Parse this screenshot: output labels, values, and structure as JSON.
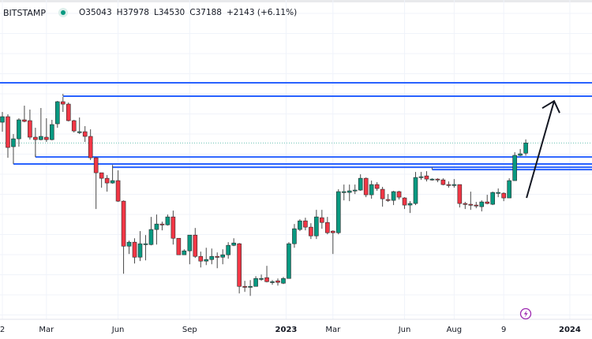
{
  "header": {
    "symbol": "· BITSTAMP",
    "open": "O35043",
    "high": "H37978",
    "low": "L34530",
    "close": "C37188",
    "change": "+2143 (+6.11%)"
  },
  "colors": {
    "up": "#089981",
    "down": "#F23645",
    "level_line": "#2962FF",
    "price_line": "#089981",
    "grid": "#f0f3fa",
    "arrow": "#131722",
    "lightning": "#9c27b0"
  },
  "chart_data": {
    "type": "candlestick",
    "interval": "weekly",
    "y_scale": "log",
    "ylim": [
      12600,
      60000
    ],
    "x_labels": [
      {
        "label": "2",
        "index": 0,
        "bold": false
      },
      {
        "label": "Mar",
        "index": 8,
        "bold": false
      },
      {
        "label": "Jun",
        "index": 21,
        "bold": false
      },
      {
        "label": "Sep",
        "index": 34,
        "bold": false
      },
      {
        "label": "2023",
        "index": 51.5,
        "bold": true
      },
      {
        "label": "Mar",
        "index": 60,
        "bold": false
      },
      {
        "label": "Jun",
        "index": 73,
        "bold": false
      },
      {
        "label": "Aug",
        "index": 82,
        "bold": false
      },
      {
        "label": "9",
        "index": 91,
        "bold": false
      },
      {
        "label": "2024",
        "index": 103,
        "bold": true
      }
    ],
    "ohlc": [
      [
        41980,
        44580,
        39720,
        43360
      ],
      [
        43360,
        43960,
        34120,
        36230
      ],
      [
        36400,
        39180,
        33050,
        38110
      ],
      [
        38110,
        42960,
        36400,
        42570
      ],
      [
        42570,
        46240,
        41980,
        42180
      ],
      [
        42370,
        45200,
        37930,
        38470
      ],
      [
        38470,
        40650,
        34280,
        37930
      ],
      [
        37930,
        45610,
        37760,
        38650
      ],
      [
        38470,
        42960,
        37420,
        37930
      ],
      [
        37930,
        42570,
        37760,
        41410
      ],
      [
        41600,
        47540,
        40650,
        47320
      ],
      [
        47320,
        48650,
        44580,
        46660
      ],
      [
        46660,
        47100,
        42180,
        42370
      ],
      [
        42370,
        42570,
        39540,
        39900
      ],
      [
        39720,
        43160,
        39180,
        39720
      ],
      [
        39720,
        41030,
        37420,
        38650
      ],
      [
        38650,
        40280,
        33660,
        34120
      ],
      [
        34120,
        34280,
        25300,
        31260
      ],
      [
        31260,
        31260,
        28650,
        30270
      ],
      [
        30270,
        30840,
        28000,
        29450
      ],
      [
        29450,
        32440,
        29320,
        29860
      ],
      [
        29860,
        31700,
        26370,
        26490
      ],
      [
        26490,
        26610,
        17340,
        20370
      ],
      [
        20370,
        21040,
        19460,
        20850
      ],
      [
        20850,
        21330,
        18410,
        19100
      ],
      [
        19100,
        22240,
        18670,
        20660
      ],
      [
        20660,
        21730,
        18750,
        20660
      ],
      [
        20560,
        24160,
        20470,
        22450
      ],
      [
        22450,
        24500,
        20560,
        23180
      ],
      [
        23180,
        23500,
        22340,
        23070
      ],
      [
        23070,
        24500,
        22970,
        24160
      ],
      [
        24160,
        25070,
        20560,
        21330
      ],
      [
        21330,
        21330,
        19370,
        19370
      ],
      [
        19370,
        20000,
        19370,
        19820
      ],
      [
        19820,
        21730,
        18330,
        21730
      ],
      [
        21730,
        22650,
        19020,
        19190
      ],
      [
        19190,
        19730,
        17990,
        18670
      ],
      [
        18670,
        20180,
        18240,
        18840
      ],
      [
        18840,
        20090,
        18330,
        19190
      ],
      [
        19190,
        19640,
        17910,
        19100
      ],
      [
        19100,
        20000,
        18330,
        19370
      ],
      [
        19370,
        20850,
        18930,
        20470
      ],
      [
        20470,
        21330,
        20370,
        20750
      ],
      [
        20660,
        20750,
        15460,
        16110
      ],
      [
        16110,
        16640,
        15600,
        16040
      ],
      [
        16040,
        16710,
        15240,
        16110
      ],
      [
        16110,
        17100,
        16110,
        16870
      ],
      [
        16870,
        17260,
        16640,
        16870
      ],
      [
        16950,
        18160,
        16490,
        16560
      ],
      [
        16560,
        16710,
        16260,
        16560
      ],
      [
        16640,
        16870,
        16180,
        16490
      ],
      [
        16410,
        17020,
        16330,
        16870
      ],
      [
        16870,
        20850,
        16870,
        20660
      ],
      [
        20660,
        23180,
        20180,
        22550
      ],
      [
        22450,
        23830,
        22240,
        23610
      ],
      [
        23610,
        24050,
        22340,
        22760
      ],
      [
        22760,
        23290,
        21240,
        21630
      ],
      [
        21630,
        25180,
        21240,
        24160
      ],
      [
        24050,
        25180,
        22550,
        23390
      ],
      [
        23390,
        24160,
        21830,
        22030
      ],
      [
        22240,
        22340,
        19460,
        22030
      ],
      [
        22030,
        28390,
        21830,
        28000
      ],
      [
        28000,
        29180,
        26610,
        28000
      ],
      [
        27870,
        29180,
        26490,
        28130
      ],
      [
        28130,
        29180,
        27610,
        28260
      ],
      [
        28260,
        30980,
        28130,
        30270
      ],
      [
        30270,
        30410,
        27110,
        27490
      ],
      [
        27490,
        29860,
        26860,
        29180
      ],
      [
        29180,
        29590,
        28130,
        28520
      ],
      [
        28390,
        28790,
        25650,
        26860
      ],
      [
        26740,
        27610,
        26370,
        26610
      ],
      [
        26610,
        28130,
        25890,
        28000
      ],
      [
        28000,
        28130,
        26740,
        27110
      ],
      [
        26990,
        27110,
        25300,
        25890
      ],
      [
        25890,
        26490,
        24720,
        26130
      ],
      [
        26130,
        31410,
        25890,
        30410
      ],
      [
        30410,
        31410,
        29990,
        30550
      ],
      [
        30690,
        31550,
        29720,
        30130
      ],
      [
        30130,
        30270,
        29860,
        30130
      ],
      [
        30130,
        30270,
        29590,
        29990
      ],
      [
        29990,
        30270,
        29050,
        29180
      ],
      [
        29180,
        29720,
        28650,
        29050
      ],
      [
        29050,
        30130,
        28650,
        29180
      ],
      [
        29180,
        29180,
        25530,
        26130
      ],
      [
        26130,
        26370,
        25300,
        26010
      ],
      [
        26010,
        28000,
        25180,
        25890
      ],
      [
        25890,
        26370,
        25420,
        25770
      ],
      [
        25650,
        26610,
        24950,
        26370
      ],
      [
        26370,
        27490,
        26010,
        26130
      ],
      [
        26010,
        28000,
        25890,
        27870
      ],
      [
        27870,
        28520,
        27110,
        27870
      ],
      [
        27740,
        27870,
        26490,
        26990
      ],
      [
        26990,
        30270,
        26990,
        29860
      ],
      [
        29860,
        35240,
        29860,
        34600
      ],
      [
        34600,
        35900,
        34440,
        34920
      ],
      [
        35043,
        37978,
        34530,
        37188
      ]
    ],
    "horizontal_levels": [
      {
        "price": 52850,
        "start_index": -1
      },
      {
        "price": 48870,
        "start_index": 11
      },
      {
        "price": 34280,
        "start_index": 6
      },
      {
        "price": 32900,
        "start_index": 2
      },
      {
        "price": 32290,
        "start_index": 20
      },
      {
        "price": 31850,
        "start_index": 78
      }
    ],
    "last_price": 37188,
    "annotation_arrow": {
      "from": {
        "index": 95,
        "price": 27000
      },
      "to": {
        "index": 100,
        "price": 47500
      }
    }
  }
}
